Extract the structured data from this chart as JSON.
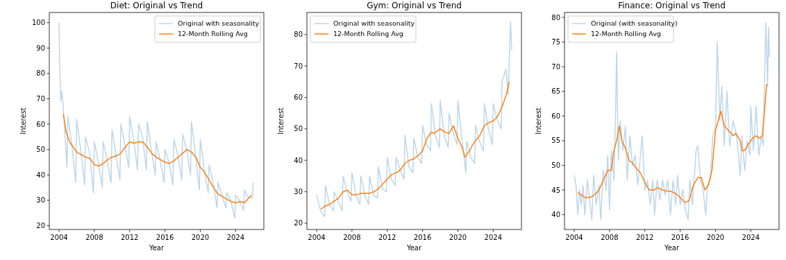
{
  "chart_data": [
    {
      "type": "line",
      "title": "Diet: Original vs Trend",
      "xlabel": "Year",
      "ylabel": "Interest",
      "xlim": [
        2002.9,
        2027.2
      ],
      "xticks": [
        2004,
        2008,
        2012,
        2016,
        2020,
        2024
      ],
      "ylim": [
        18.5,
        104
      ],
      "yticks": [
        20,
        30,
        40,
        50,
        60,
        70,
        80,
        90,
        100
      ],
      "legend": "top right",
      "grid": false,
      "marker": "none",
      "line_style": "solid",
      "series": [
        {
          "name": "Original with seasonality",
          "color": "#bcd6ea",
          "x": [
            2004.0,
            2004.1,
            2004.2,
            2004.3,
            2004.45,
            2004.9,
            2005.0,
            2005.45,
            2005.9,
            2006.0,
            2006.45,
            2006.9,
            2007.0,
            2007.45,
            2007.9,
            2008.0,
            2008.45,
            2008.9,
            2009.0,
            2009.45,
            2009.9,
            2010.0,
            2010.45,
            2010.9,
            2011.0,
            2011.45,
            2011.9,
            2012.0,
            2012.45,
            2012.9,
            2013.0,
            2013.45,
            2013.9,
            2014.0,
            2014.45,
            2014.9,
            2015.0,
            2015.45,
            2015.9,
            2016.0,
            2016.45,
            2016.9,
            2017.0,
            2017.45,
            2017.9,
            2018.0,
            2018.45,
            2018.9,
            2019.0,
            2019.45,
            2019.9,
            2020.0,
            2020.45,
            2020.9,
            2021.0,
            2021.45,
            2021.9,
            2022.0,
            2022.45,
            2022.9,
            2023.0,
            2023.45,
            2023.9,
            2024.0,
            2024.45,
            2024.9,
            2025.0,
            2025.45,
            2025.9,
            2026.0
          ],
          "values": [
            100,
            80,
            69,
            73,
            68,
            43,
            63,
            52,
            37,
            62,
            50,
            36,
            55,
            49,
            33,
            53,
            45,
            35,
            53,
            46,
            37,
            58,
            48,
            38,
            60,
            52,
            43,
            63,
            54,
            42,
            60,
            55,
            42,
            61,
            50,
            40,
            53,
            46,
            37,
            50,
            45,
            36,
            54,
            48,
            38,
            56,
            50,
            40,
            61,
            48,
            34,
            54,
            42,
            33,
            44,
            37,
            27,
            37,
            32,
            27,
            33,
            30,
            23,
            32,
            30,
            26,
            34,
            31,
            31,
            37
          ]
        },
        {
          "name": "12-Month Rolling Avg",
          "color": "#ff7f0e",
          "x": [
            2004.5,
            2004.8,
            2005.2,
            2005.6,
            2006.0,
            2006.5,
            2007.0,
            2007.5,
            2008.0,
            2008.5,
            2009.0,
            2009.5,
            2010.0,
            2010.5,
            2011.0,
            2011.5,
            2012.0,
            2012.5,
            2013.0,
            2013.5,
            2014.0,
            2014.5,
            2015.0,
            2015.5,
            2016.0,
            2016.5,
            2017.0,
            2017.5,
            2018.0,
            2018.5,
            2019.0,
            2019.5,
            2020.0,
            2020.5,
            2021.0,
            2021.5,
            2022.0,
            2022.5,
            2023.0,
            2023.5,
            2024.0,
            2024.5,
            2025.0,
            2025.5,
            2025.8
          ],
          "values": [
            64,
            57,
            53,
            51,
            49,
            48,
            47,
            46.5,
            44,
            43.5,
            44.5,
            46,
            47,
            47.5,
            48.5,
            51,
            53,
            52.5,
            53,
            53,
            51,
            48.5,
            47,
            46,
            45,
            44.5,
            45.5,
            47,
            48.5,
            50,
            49,
            47,
            43,
            41,
            38,
            35,
            32.5,
            31.5,
            30.5,
            29.5,
            29,
            29.5,
            29,
            31,
            32
          ]
        }
      ]
    },
    {
      "type": "line",
      "title": "Gym: Original vs Trend",
      "xlabel": "Year",
      "ylabel": "Interest",
      "xlim": [
        2002.9,
        2027.2
      ],
      "xticks": [
        2004,
        2008,
        2012,
        2016,
        2020,
        2024
      ],
      "ylim": [
        18,
        87
      ],
      "yticks": [
        20,
        30,
        40,
        50,
        60,
        70,
        80
      ],
      "legend": "top left",
      "grid": false,
      "marker": "none",
      "line_style": "solid",
      "series": [
        {
          "name": "Original with seasonality",
          "color": "#bcd6ea",
          "x": [
            2004.0,
            2004.45,
            2004.9,
            2005.0,
            2005.45,
            2005.9,
            2006.0,
            2006.45,
            2006.9,
            2007.0,
            2007.45,
            2007.9,
            2008.0,
            2008.45,
            2008.9,
            2009.0,
            2009.45,
            2009.9,
            2010.0,
            2010.45,
            2010.9,
            2011.0,
            2011.45,
            2011.9,
            2012.0,
            2012.45,
            2012.9,
            2013.0,
            2013.45,
            2013.9,
            2014.0,
            2014.45,
            2014.9,
            2015.0,
            2015.45,
            2015.9,
            2016.0,
            2016.45,
            2016.9,
            2017.0,
            2017.45,
            2017.9,
            2018.0,
            2018.45,
            2018.9,
            2019.0,
            2019.45,
            2019.9,
            2020.0,
            2020.45,
            2020.9,
            2021.0,
            2021.45,
            2021.9,
            2022.0,
            2022.45,
            2022.9,
            2023.0,
            2023.45,
            2023.9,
            2024.0,
            2024.45,
            2024.9,
            2025.0,
            2025.45,
            2025.7,
            2025.96,
            2026.1
          ],
          "values": [
            29,
            24,
            22,
            32,
            26,
            24,
            30,
            27,
            24,
            35,
            30,
            27,
            36,
            29,
            26,
            35,
            29,
            26,
            35,
            29,
            28,
            38,
            31,
            30,
            41,
            34,
            32,
            41,
            37,
            34,
            48,
            38,
            36,
            47,
            41,
            39,
            51,
            45,
            43,
            58,
            48,
            44,
            59,
            48,
            44,
            55,
            49,
            45,
            59,
            47,
            36,
            46,
            41,
            39,
            51,
            46,
            43,
            58,
            50,
            45,
            58,
            53,
            50,
            65,
            69,
            61,
            84,
            75
          ]
        },
        {
          "name": "12-Month Rolling Avg",
          "color": "#ff7f0e",
          "x": [
            2004.5,
            2005.0,
            2005.5,
            2006.0,
            2006.5,
            2007.0,
            2007.5,
            2008.0,
            2008.5,
            2009.0,
            2009.5,
            2010.0,
            2010.5,
            2011.0,
            2011.5,
            2012.0,
            2012.5,
            2013.0,
            2013.5,
            2014.0,
            2014.5,
            2015.0,
            2015.5,
            2016.0,
            2016.5,
            2017.0,
            2017.3,
            2018.0,
            2018.5,
            2019.0,
            2019.5,
            2020.0,
            2020.5,
            2020.8,
            2021.3,
            2021.8,
            2022.5,
            2023.0,
            2023.5,
            2024.0,
            2024.5,
            2025.0,
            2025.5,
            2025.8
          ],
          "values": [
            24.5,
            25.5,
            26,
            27,
            28,
            30,
            30.5,
            29,
            29,
            29.5,
            29.5,
            29.5,
            30,
            31,
            32.5,
            34,
            35.5,
            36,
            37,
            39,
            40,
            40.5,
            41.5,
            43,
            47,
            49,
            48.5,
            50,
            49,
            48.5,
            51,
            47,
            44,
            41,
            43,
            45.5,
            48,
            51,
            52,
            52.5,
            54,
            57,
            61,
            65
          ]
        }
      ]
    },
    {
      "type": "line",
      "title": "Finance: Original vs Trend",
      "xlabel": "Year",
      "ylabel": "Interest",
      "xlim": [
        2002.9,
        2027.2
      ],
      "xticks": [
        2004,
        2008,
        2012,
        2016,
        2020,
        2024
      ],
      "ylim": [
        37,
        81
      ],
      "yticks": [
        40,
        45,
        50,
        55,
        60,
        65,
        70,
        75,
        80
      ],
      "legend": "top left",
      "grid": false,
      "marker": "none",
      "line_style": "solid",
      "series": [
        {
          "name": "Original (with seasonality)",
          "color": "#bcd6ea",
          "x": [
            2004.0,
            2004.2,
            2004.4,
            2004.6,
            2004.8,
            2005.0,
            2005.2,
            2005.5,
            2005.8,
            2006.0,
            2006.2,
            2006.5,
            2006.8,
            2007.0,
            2007.3,
            2007.6,
            2007.8,
            2008.0,
            2008.2,
            2008.5,
            2008.7,
            2008.8,
            2009.0,
            2009.2,
            2009.5,
            2009.8,
            2010.0,
            2010.3,
            2010.6,
            2010.9,
            2011.2,
            2011.4,
            2011.7,
            2012.0,
            2012.3,
            2012.6,
            2012.9,
            2013.1,
            2013.4,
            2013.7,
            2014.0,
            2014.3,
            2014.6,
            2014.9,
            2015.2,
            2015.5,
            2015.7,
            2016.0,
            2016.3,
            2016.6,
            2016.9,
            2017.1,
            2017.4,
            2017.8,
            2018.0,
            2018.3,
            2018.6,
            2018.9,
            2019.1,
            2019.4,
            2019.7,
            2020.0,
            2020.2,
            2020.5,
            2020.7,
            2021.0,
            2021.3,
            2021.6,
            2022.0,
            2022.4,
            2022.8,
            2023.0,
            2023.3,
            2023.6,
            2023.9,
            2024.0,
            2024.3,
            2024.6,
            2024.9,
            2025.2,
            2025.4,
            2025.7,
            2025.9,
            2026.0,
            2026.1
          ],
          "values": [
            48,
            46,
            40,
            45,
            42,
            46,
            40,
            47,
            42,
            39,
            48,
            42,
            46,
            39,
            49,
            45,
            52,
            41,
            53,
            47,
            62,
            73,
            51,
            59,
            53,
            58,
            47,
            56,
            50,
            52,
            46,
            50,
            56,
            45,
            47,
            42,
            47,
            40,
            47,
            43,
            47,
            44,
            47,
            40,
            47,
            42,
            48,
            42,
            45,
            41,
            39,
            47,
            42,
            53,
            54,
            47,
            45,
            40,
            46,
            47,
            56,
            58,
            75,
            59,
            66,
            54,
            65,
            54,
            59,
            56,
            48,
            56,
            49,
            55,
            52,
            62,
            53,
            62,
            52,
            56,
            54,
            79,
            66,
            78,
            72
          ]
        },
        {
          "name": "12-Month Rolling Avg",
          "color": "#ff7f0e",
          "x": [
            2004.4,
            2004.8,
            2005.2,
            2005.8,
            2006.3,
            2006.8,
            2007.3,
            2007.8,
            2008.2,
            2008.5,
            2008.8,
            2009.1,
            2009.4,
            2009.8,
            2010.2,
            2010.6,
            2011.0,
            2011.5,
            2012.0,
            2012.5,
            2013.0,
            2013.5,
            2014.0,
            2014.5,
            2015.0,
            2015.5,
            2016.0,
            2016.5,
            2017.0,
            2017.5,
            2018.0,
            2018.4,
            2018.8,
            2019.2,
            2019.6,
            2020.0,
            2020.3,
            2020.6,
            2021.0,
            2021.5,
            2022.0,
            2022.3,
            2022.8,
            2023.0,
            2023.3,
            2023.8,
            2024.2,
            2024.6,
            2025.0,
            2025.3,
            2025.5,
            2025.8
          ],
          "values": [
            44.5,
            44,
            43.5,
            43.5,
            44,
            45,
            47,
            49,
            49,
            53,
            55,
            58,
            55,
            53.5,
            51,
            50.5,
            49.5,
            48.5,
            46.5,
            45,
            45,
            45.5,
            45,
            44.8,
            44.7,
            44.3,
            43.5,
            42.5,
            42.8,
            46,
            47.5,
            47.5,
            45,
            46,
            49,
            57,
            59,
            61,
            58,
            57,
            56,
            56.5,
            55,
            53,
            53,
            54.5,
            55.5,
            56,
            55.5,
            56,
            60,
            66.5
          ]
        }
      ]
    }
  ]
}
